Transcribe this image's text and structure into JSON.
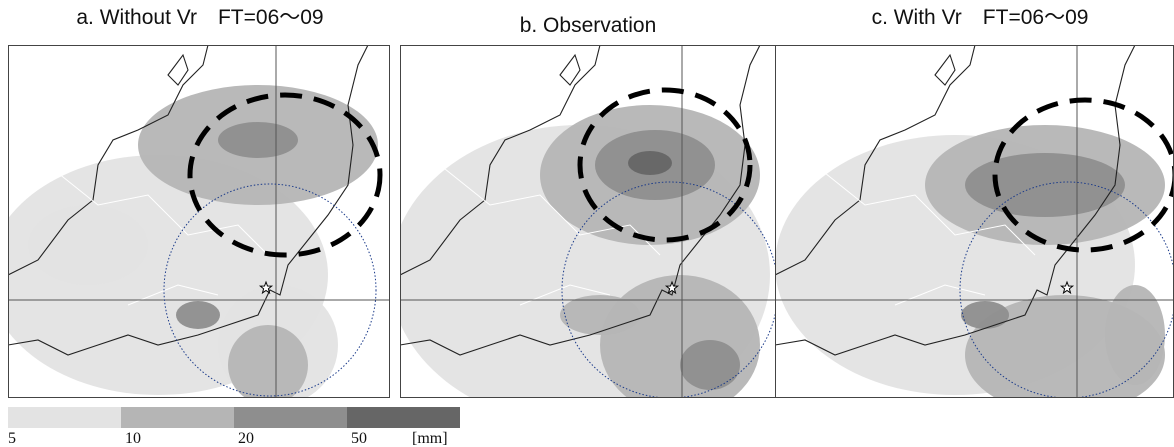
{
  "panels": [
    {
      "title": "a. Without Vr　FT=06〜09"
    },
    {
      "title": "b. Observation"
    },
    {
      "title": "c. With Vr　FT=06〜09"
    }
  ],
  "colorbar": {
    "ticks": [
      5,
      10,
      20,
      50
    ],
    "unit": "[mm]",
    "colors": [
      "#e3e3e3",
      "#b5b5b5",
      "#8e8e8e",
      "#666666"
    ]
  }
}
